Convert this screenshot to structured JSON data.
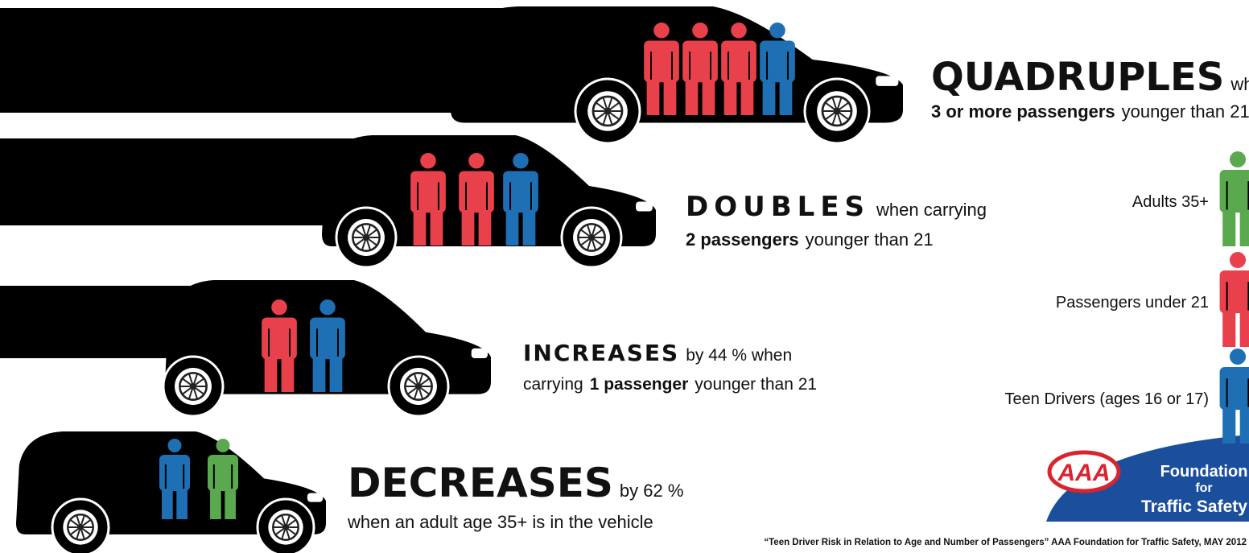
{
  "rows": [
    {
      "headline": "QUADRUPLES",
      "lines": [
        [
          {
            "text": "when carrying"
          }
        ],
        [
          {
            "text": "3 or more passengers",
            "bold": true
          },
          {
            "text": "younger than 21"
          }
        ]
      ]
    },
    {
      "headline": "DOUBLES",
      "lines": [
        [
          {
            "text": "when carrying"
          }
        ],
        [
          {
            "text": "2 passengers",
            "bold": true
          },
          {
            "text": "younger than 21"
          }
        ]
      ]
    },
    {
      "headline": "INCREASES",
      "lines": [
        [
          {
            "text": "by 44 % when"
          }
        ],
        [
          {
            "text": "carrying"
          },
          {
            "text": "1 passenger",
            "bold": true
          },
          {
            "text": "younger than 21"
          }
        ]
      ]
    },
    {
      "headline": "DECREASES",
      "lines": [
        [
          {
            "text": "by 62 %"
          }
        ],
        [
          {
            "text": "when an adult age 35+ is in the vehicle"
          }
        ]
      ]
    }
  ],
  "legend": [
    "Adults 35+",
    "Passengers under 21",
    "Teen Drivers (ages 16 or 17)"
  ],
  "logo": {
    "mark": "AAA",
    "lines": [
      "Foundation",
      "for",
      "Traffic Safety"
    ]
  },
  "citation": "“Teen Driver Risk in Relation to Age and Number of Passengers”  AAA Foundation for Traffic Safety, MAY 2012"
}
